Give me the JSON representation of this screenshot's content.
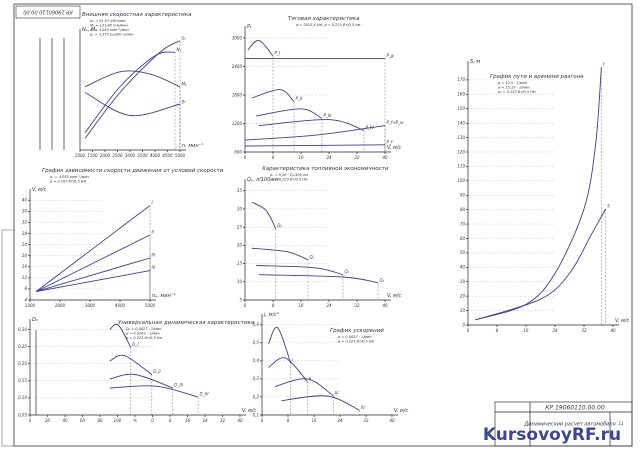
{
  "panels": [
    {
      "title": "Внешняя скоростная характеристика",
      "notes": [
        "Nₑ = 61,67 кВт/мин",
        "Mₑ = 131,80 Н·м/мин",
        "nₑ = 4,055 мин⁻¹/мин",
        "gₑ = 3,375 Gₑ/кВт·ч/мин"
      ],
      "xticks": [
        "1000",
        "1500",
        "2000",
        "2500",
        "3000",
        "3500",
        "4000",
        "4500",
        "5000"
      ],
      "yticks": [],
      "xlabel": "n, мин⁻¹",
      "ylabel": "Nₑ, Mₑ",
      "curve_labels": [
        "Gₜ",
        "Mₑ",
        "Nₑ",
        "gₑ"
      ]
    },
    {
      "title": "Тяговая характеристика",
      "notes": [
        "ψ = 2015,6 Нм, ρ = 0,223 Вт/0,5 Нм"
      ],
      "xticks": [
        "0",
        "8",
        "16",
        "24",
        "32",
        "40"
      ],
      "yticks": [
        "600",
        "1200",
        "1800",
        "2400",
        "3000"
      ],
      "xlabel": "V, м/с",
      "ylabel": "Pₜ",
      "curve_labels": [
        "P_I",
        "P_ψ",
        "P_II",
        "P_III",
        "P_IV",
        "P_f+P_w",
        "P_f"
      ]
    },
    {
      "title": "Характеристика топливной экономичности",
      "notes": [
        "gₑ = 0,26 · Qₛ/100 км",
        "ψ₁ = 0,223 Вт/0,5 Нм"
      ],
      "xticks": [
        "0",
        "8",
        "16",
        "24",
        "32",
        "40"
      ],
      "yticks": [
        "5",
        "10",
        "15",
        "20",
        "25",
        "30",
        "35"
      ],
      "xlabel": "V, м/с",
      "ylabel": "Qₛ, л/100 км",
      "curve_labels": [
        "Qₛ",
        "Qₛ",
        "Qₛ",
        "Qₛ"
      ]
    },
    {
      "title": "График зависимости скорости движения от условий скорости",
      "notes": [
        "nₑ = 4,055 мин⁻¹/мин",
        "ρ = 0,167 Вт/0,5 Нм"
      ],
      "xticks": [
        "1000",
        "2000",
        "3000",
        "4000",
        "5000"
      ],
      "yticks": [
        "4",
        "8",
        "12",
        "16",
        "20",
        "24",
        "28",
        "32",
        "36",
        "40"
      ],
      "xlabel": "nₑ, мин⁻¹",
      "ylabel": "V, м/с",
      "curve_labels": [
        "I",
        "II",
        "III",
        "IV"
      ]
    },
    {
      "title": "Универсальная динамическая характеристика",
      "notes": [
        "D₀ = 0,0027 · 1/мин",
        "ψ = 0,0362 · 1/мин",
        "ρ = 0,223 Вт/0,5 Нм"
      ],
      "xticks": [
        "0",
        "20",
        "40",
        "60",
        "80",
        "100",
        "%",
        "0",
        "8",
        "16",
        "24",
        "32",
        "40"
      ],
      "yticks": [
        "0,05",
        "0,10",
        "0,15",
        "0,20",
        "0,25",
        "0,30"
      ],
      "xlabel": "V, м/с",
      "ylabel": "D₀",
      "curve_labels": [
        "D_I",
        "D_II",
        "D_III",
        "D_IV"
      ]
    },
    {
      "title": "График ускорений",
      "notes": [
        "ρ = 0,0027 · 1/мин",
        "ψ = 0,223 Вт/0,5 Нм"
      ],
      "xticks": [
        "0",
        "8",
        "16",
        "24",
        "32",
        "40"
      ],
      "yticks": [
        "0,1",
        "0,2",
        "0,3",
        "0,4",
        "0,5",
        "0,6"
      ],
      "xlabel": "V, м/с",
      "ylabel": "j, м/с²",
      "curve_labels": [
        "I",
        "II",
        "III",
        "IV"
      ]
    },
    {
      "title": "График пути и времени разгона",
      "notes": [
        "ρ = 12,5 · 1/мин",
        "ψ = 15,19 · 1/мин",
        "ρ₁ = 0,223 Вт/0,5 Нм"
      ],
      "xticks": [
        "0",
        "8",
        "16",
        "24",
        "32",
        "40"
      ],
      "yticks": [
        "0",
        "10",
        "20",
        "30",
        "40",
        "50",
        "60",
        "70",
        "80",
        "90",
        "100",
        "110",
        "120",
        "130",
        "140",
        "150",
        "160",
        "170"
      ],
      "xlabel": "V, м/с",
      "ylabel": "S, м",
      "curve_labels": [
        "t",
        "S"
      ]
    }
  ],
  "titleblock": {
    "code": "КР.19060110.00.00",
    "name": "Динамический расчет автомобиля",
    "sheet": "11"
  },
  "stamp": "КР.19060110.00.00",
  "watermark": "KursovoyRF.ru"
}
